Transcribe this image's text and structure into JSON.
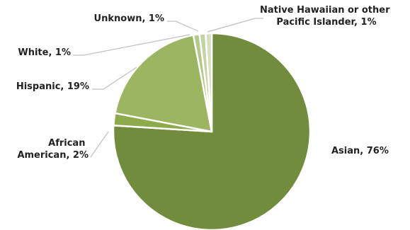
{
  "chart_data": {
    "type": "pie",
    "title": "",
    "slices": [
      {
        "label_lines": [
          "Asian, 76%"
        ],
        "category": "Asian",
        "value": 76,
        "color": "#718c3c"
      },
      {
        "label_lines": [
          "African",
          "American, 2%"
        ],
        "category": "African American",
        "value": 2,
        "color": "#8eab4c"
      },
      {
        "label_lines": [
          "Hispanic, 19%"
        ],
        "category": "Hispanic",
        "value": 19,
        "color": "#9bb560"
      },
      {
        "label_lines": [
          "White, 1%"
        ],
        "category": "White",
        "value": 1,
        "color": "#b2c98c"
      },
      {
        "label_lines": [
          "Unknown, 1%"
        ],
        "category": "Unknown",
        "value": 1,
        "color": "#c2d4a3"
      },
      {
        "label_lines": [
          "Native Hawaiian or other",
          "Pacific Islander, 1%"
        ],
        "category": "Native Hawaiian or other Pacific Islander",
        "value": 1,
        "color": "#d4e0bf"
      }
    ],
    "start_angle_deg": 0,
    "direction": "clockwise"
  }
}
